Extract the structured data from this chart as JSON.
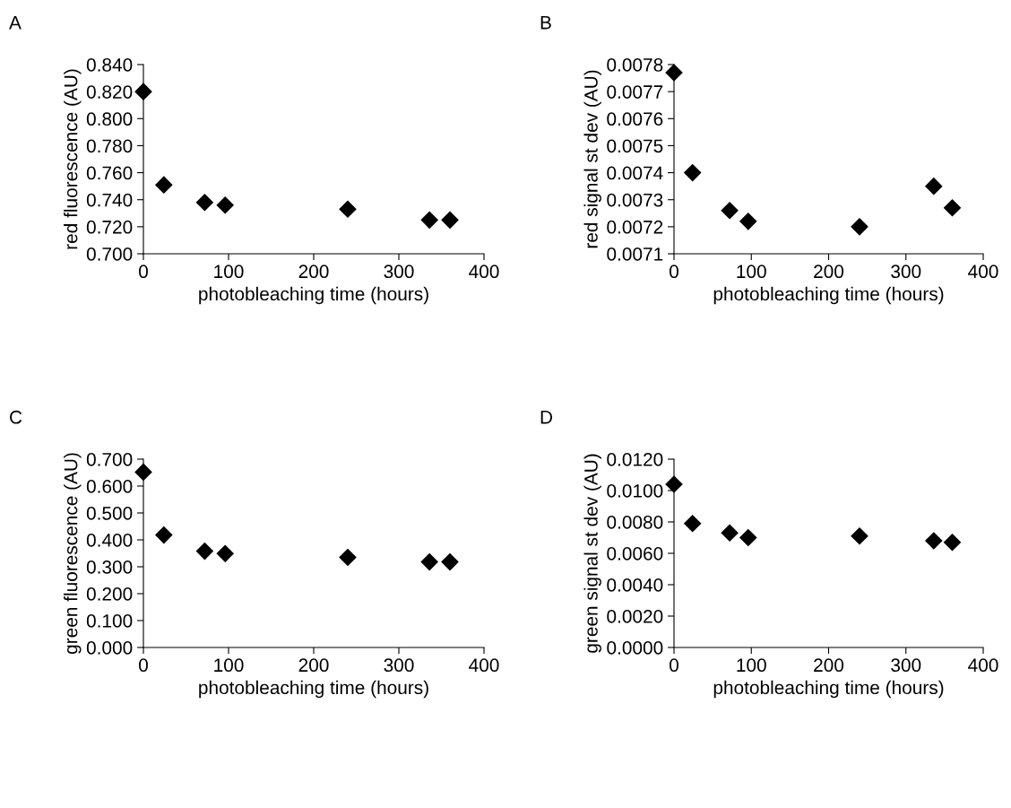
{
  "chart_data": [
    {
      "type": "scatter",
      "annotations": [
        "A"
      ],
      "xlabel": "photobleaching time (hours)",
      "ylabel": "red fluorescence (AU)",
      "marker": "diamond",
      "grid": false,
      "x": [
        0,
        24,
        72,
        96,
        240,
        336,
        360
      ],
      "series": [
        {
          "color": "#000000",
          "values": [
            0.82,
            0.751,
            0.738,
            0.736,
            0.733,
            0.725,
            0.725
          ]
        }
      ],
      "xlim": [
        0,
        400
      ],
      "xticks": [
        0,
        100,
        200,
        300,
        400
      ],
      "ylim": [
        0.7,
        0.84
      ],
      "yticks": [
        {
          "value": 0.7,
          "label": "0.700"
        },
        {
          "value": 0.72,
          "label": "0.720"
        },
        {
          "value": 0.74,
          "label": "0.740"
        },
        {
          "value": 0.76,
          "label": "0.760"
        },
        {
          "value": 0.78,
          "label": "0.780"
        },
        {
          "value": 0.8,
          "label": "0.800"
        },
        {
          "value": 0.82,
          "label": "0.820"
        },
        {
          "value": 0.84,
          "label": "0.840"
        }
      ]
    },
    {
      "type": "scatter",
      "annotations": [
        "B"
      ],
      "xlabel": "photobleaching time (hours)",
      "ylabel": "red signal st dev (AU)",
      "marker": "diamond",
      "grid": false,
      "x": [
        0,
        24,
        72,
        96,
        240,
        336,
        360
      ],
      "series": [
        {
          "color": "#000000",
          "values": [
            0.00777,
            0.0074,
            0.00726,
            0.00722,
            0.0072,
            0.00735,
            0.00727
          ]
        }
      ],
      "xlim": [
        0,
        400
      ],
      "xticks": [
        0,
        100,
        200,
        300,
        400
      ],
      "ylim": [
        0.0071,
        0.0078
      ],
      "yticks": [
        0.0071,
        0.0072,
        0.0073,
        0.0074,
        0.0075,
        0.0076,
        0.0077,
        0.0078
      ]
    },
    {
      "type": "scatter",
      "annotations": [
        "C"
      ],
      "xlabel": "photobleaching time (hours)",
      "ylabel": "green fluorescence (AU)",
      "marker": "diamond",
      "grid": false,
      "x": [
        0,
        24,
        72,
        96,
        240,
        336,
        360
      ],
      "series": [
        {
          "color": "#000000",
          "values": [
            0.652,
            0.418,
            0.358,
            0.349,
            0.335,
            0.318,
            0.318
          ]
        }
      ],
      "xlim": [
        0,
        400
      ],
      "xticks": [
        0,
        100,
        200,
        300,
        400
      ],
      "ylim": [
        0,
        0.7
      ],
      "yticks": [
        {
          "value": 0,
          "label": "0.000"
        },
        {
          "value": 0.1,
          "label": "0.100"
        },
        {
          "value": 0.2,
          "label": "0.200"
        },
        {
          "value": 0.3,
          "label": "0.300"
        },
        {
          "value": 0.4,
          "label": "0.400"
        },
        {
          "value": 0.5,
          "label": "0.500"
        },
        {
          "value": 0.6,
          "label": "0.600"
        },
        {
          "value": 0.7,
          "label": "0.700"
        }
      ]
    },
    {
      "type": "scatter",
      "annotations": [
        "D"
      ],
      "xlabel": "photobleaching time (hours)",
      "ylabel": "green signal st dev (AU)",
      "marker": "diamond",
      "grid": false,
      "x": [
        0,
        24,
        72,
        96,
        240,
        336,
        360
      ],
      "series": [
        {
          "color": "#000000",
          "values": [
            0.0104,
            0.0079,
            0.0073,
            0.007,
            0.0071,
            0.0068,
            0.0067
          ]
        }
      ],
      "xlim": [
        0,
        400
      ],
      "xticks": [
        0,
        100,
        200,
        300,
        400
      ],
      "ylim": [
        0,
        0.012
      ],
      "yticks": [
        {
          "value": 0,
          "label": "0.0000"
        },
        {
          "value": 0.002,
          "label": "0.0020"
        },
        {
          "value": 0.004,
          "label": "0.0040"
        },
        {
          "value": 0.006,
          "label": "0.0060"
        },
        {
          "value": 0.008,
          "label": "0.0080"
        },
        {
          "value": 0.01,
          "label": "0.0100"
        },
        {
          "value": 0.012,
          "label": "0.0120"
        }
      ]
    }
  ]
}
